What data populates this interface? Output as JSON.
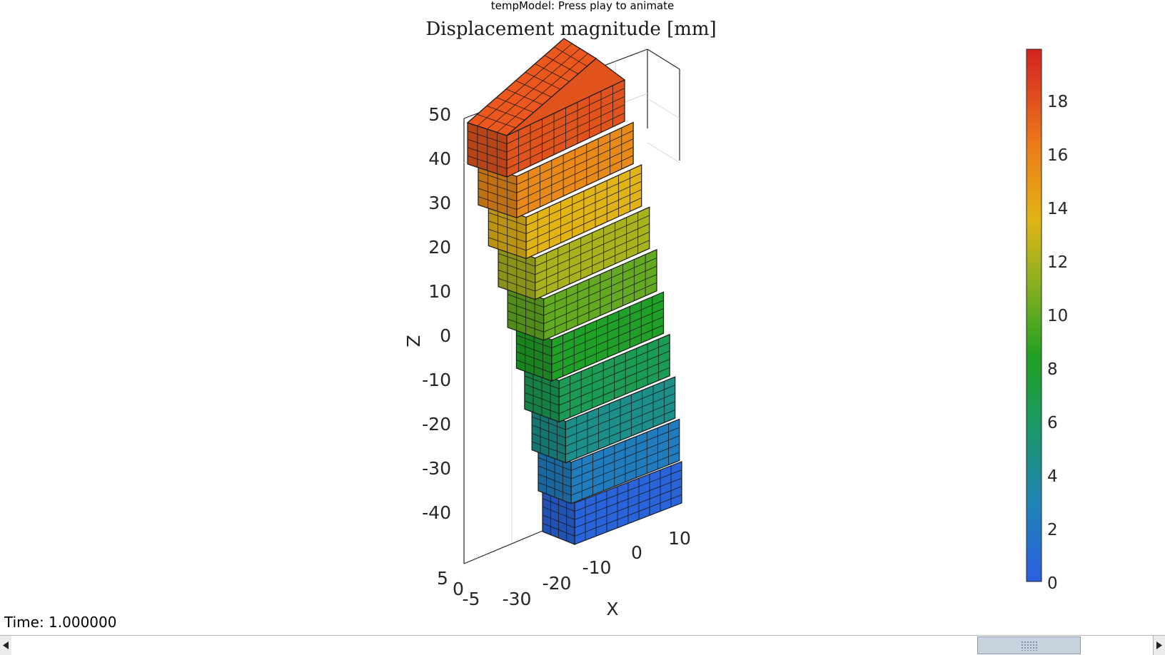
{
  "window": {
    "title": "tempModel: Press play to animate"
  },
  "plot": {
    "title": "Displacement magnitude [mm]",
    "z_label": "Z",
    "x_label": "X",
    "z_ticks": [
      "50",
      "40",
      "30",
      "20",
      "10",
      "0",
      "-10",
      "-20",
      "-30",
      "-40"
    ],
    "x_ticks": [
      "-30",
      "-20",
      "-10",
      "0",
      "10"
    ],
    "y_ticks": [
      "5",
      "0",
      "-5"
    ],
    "mesh_color": "#1a1a1a"
  },
  "colorbar": {
    "ticks": [
      "18",
      "16",
      "14",
      "12",
      "10",
      "8",
      "6",
      "4",
      "2",
      "0"
    ],
    "range": [
      0,
      20
    ],
    "colors": [
      "#2b5fe0",
      "#1f82b8",
      "#1a9a62",
      "#1fa022",
      "#8ab020",
      "#e2b515",
      "#ec7a18",
      "#d42222"
    ]
  },
  "status": {
    "time_label": "Time: 1.000000"
  },
  "scrollbar": {
    "position_percent": 93
  }
}
